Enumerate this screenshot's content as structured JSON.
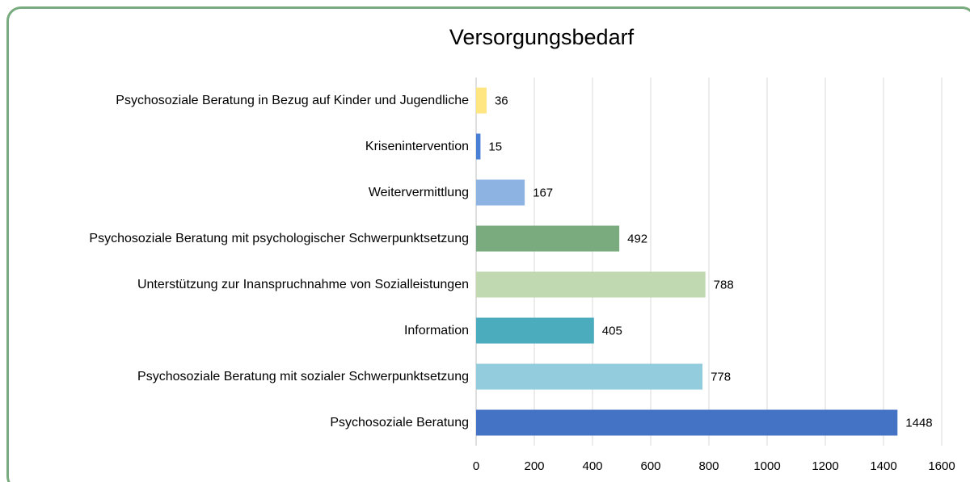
{
  "chart_data": {
    "type": "bar",
    "orientation": "horizontal",
    "title": "Versorgungsbedarf",
    "categories": [
      "Psychosoziale Beratung in Bezug auf Kinder und Jugendliche",
      "Krisenintervention",
      "Weitervermittlung",
      "Psychosoziale Beratung mit psychologischer Schwerpunktsetzung",
      "Unterstützung zur Inanspruchnahme von Sozialleistungen",
      "Information",
      "Psychosoziale Beratung mit sozialer Schwerpunktsetzung",
      "Psychosoziale Beratung"
    ],
    "values": [
      36,
      15,
      167,
      492,
      788,
      405,
      778,
      1448
    ],
    "colors": [
      "#ffe680",
      "#4a7fd6",
      "#8db3e2",
      "#7aab7e",
      "#c0d9b0",
      "#4bacbe",
      "#93cddd",
      "#4472c4"
    ],
    "xlim": [
      0,
      1600
    ],
    "xticks": [
      0,
      200,
      400,
      600,
      800,
      1000,
      1200,
      1400,
      1600
    ],
    "grid": true
  }
}
